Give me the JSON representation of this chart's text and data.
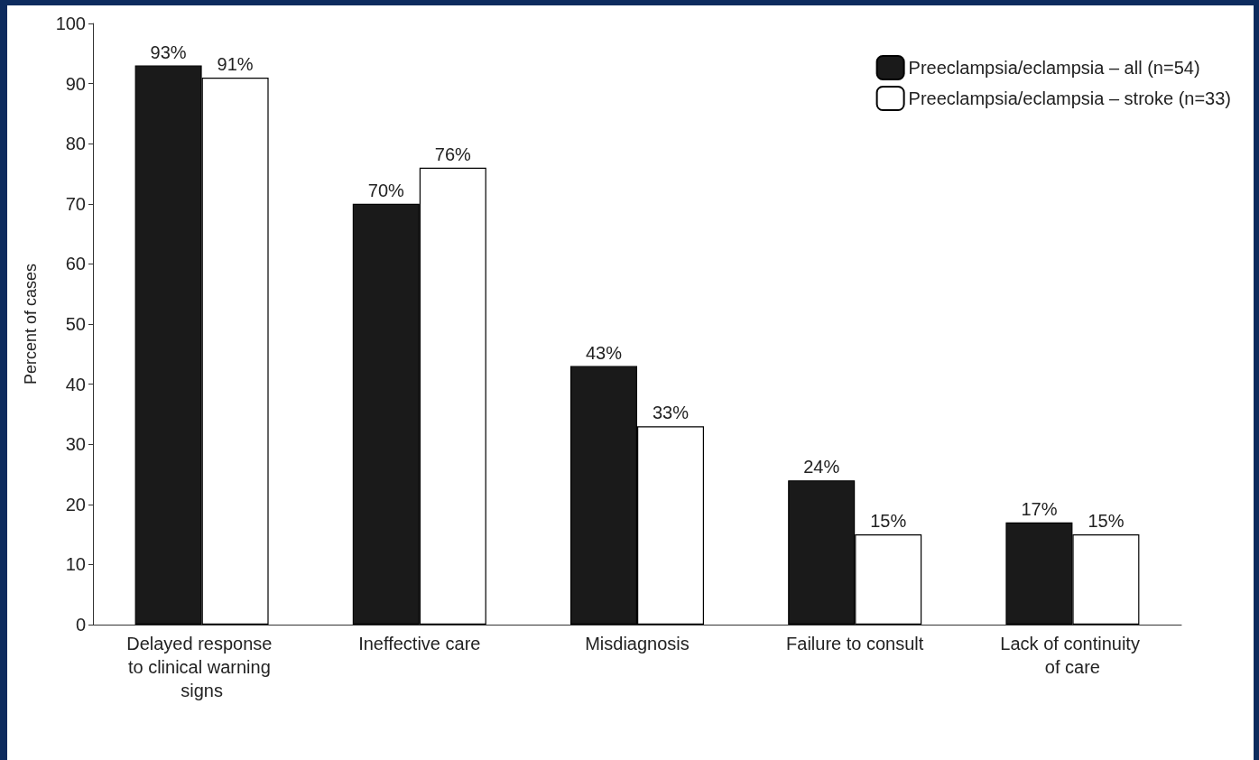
{
  "chart_data": {
    "type": "bar",
    "ylabel": "Percent of cases",
    "categories": [
      "Delayed response to clinical warning signs",
      "Ineffective care",
      "Misdiagnosis",
      "Failure to consult",
      "Lack of continuity of care"
    ],
    "series": [
      {
        "name": "Preeclampsia/eclampsia – all (n=54)",
        "color": "#1a1a1a",
        "values": [
          93,
          70,
          43,
          24,
          17
        ],
        "value_labels": [
          "93%",
          "70%",
          "43%",
          "24%",
          "17%"
        ]
      },
      {
        "name": "Preeclampsia/eclampsia – stroke (n=33)",
        "color": "#ffffff",
        "values": [
          91,
          76,
          33,
          15,
          15
        ],
        "value_labels": [
          "91%",
          "76%",
          "33%",
          "15%",
          "15%"
        ]
      }
    ],
    "ylim": [
      0,
      100
    ],
    "yticks": [
      0,
      10,
      20,
      30,
      40,
      50,
      60,
      70,
      80,
      90,
      100
    ],
    "grid": false,
    "legend": "top right"
  }
}
